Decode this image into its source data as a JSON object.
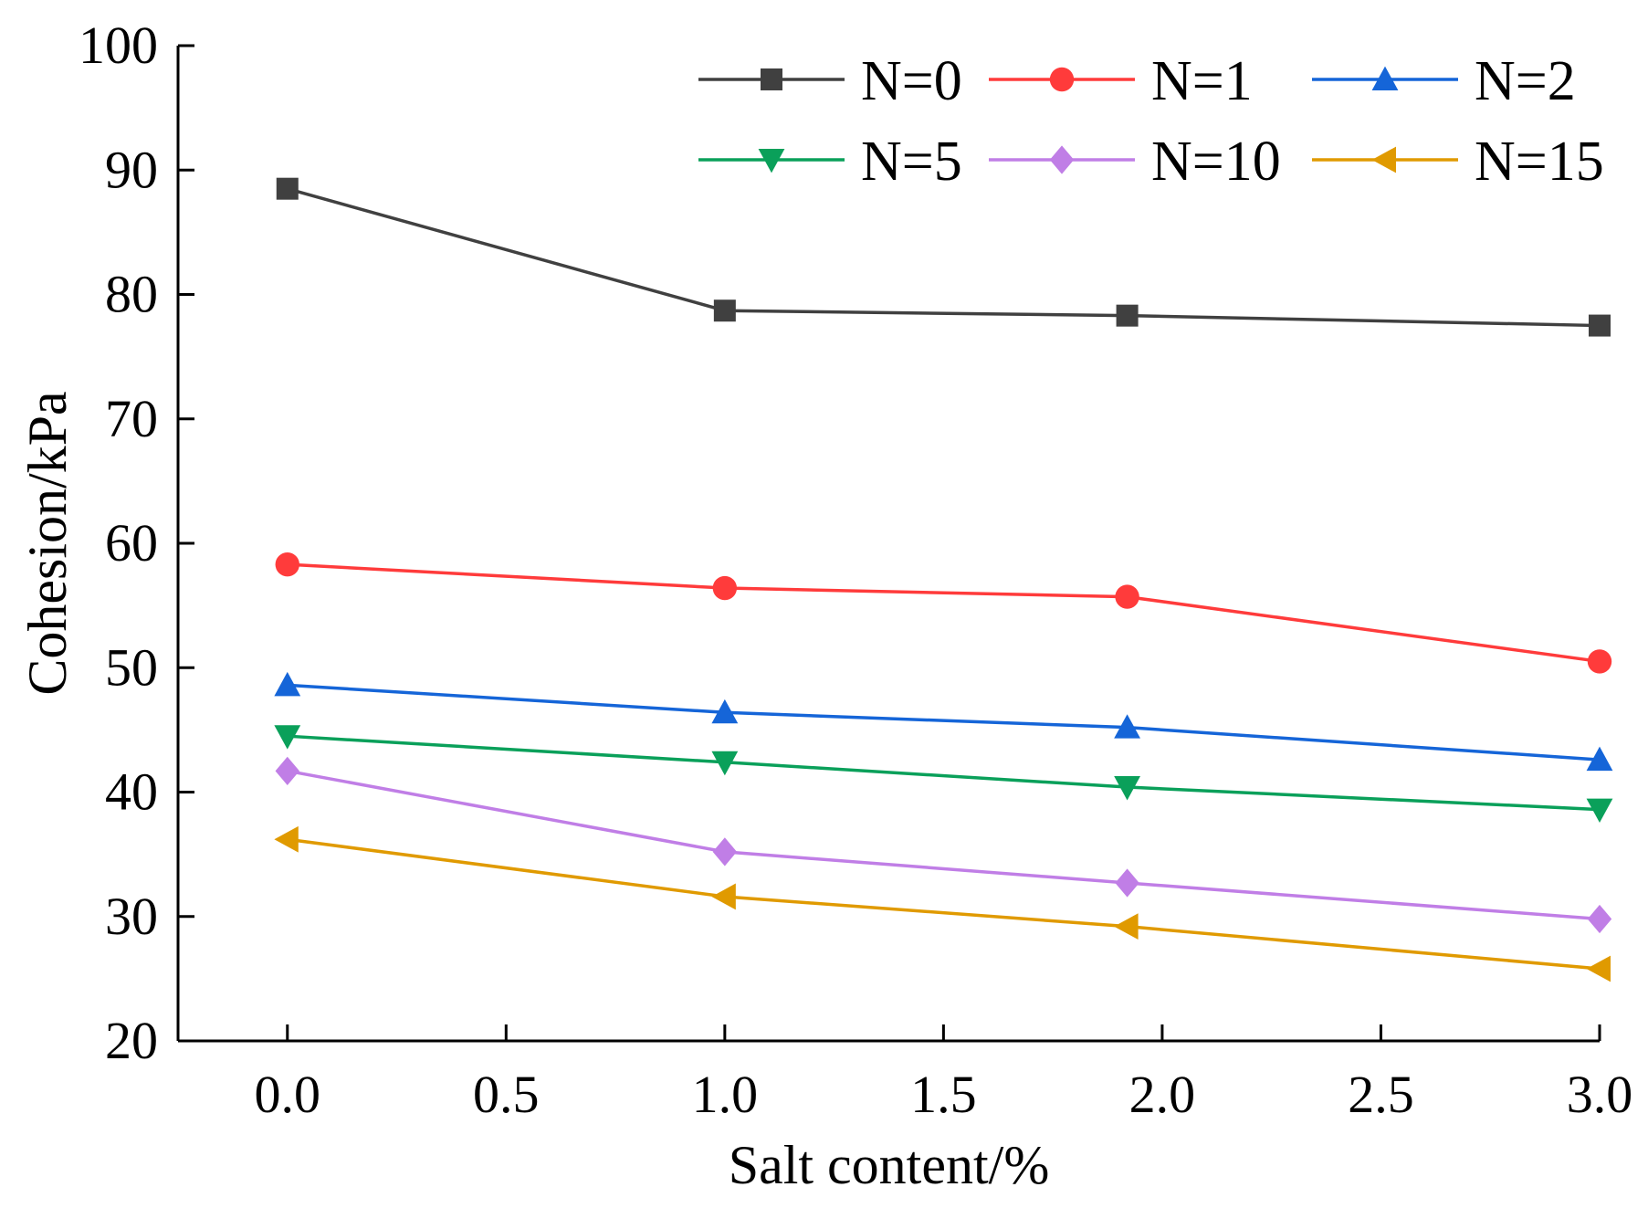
{
  "chart_data": {
    "type": "line",
    "title": "",
    "xlabel": "Salt content/%",
    "ylabel": "Cohesion/kPa",
    "xlim": [
      -0.25,
      3.0
    ],
    "ylim": [
      20,
      100
    ],
    "x_ticks": [
      "0.0",
      "0.5",
      "1.0",
      "1.5",
      "2.0",
      "2.5",
      "3.0"
    ],
    "x_tick_values": [
      0.0,
      0.5,
      1.0,
      1.5,
      2.0,
      2.5,
      3.0
    ],
    "y_ticks": [
      "20",
      "30",
      "40",
      "50",
      "60",
      "70",
      "80",
      "90",
      "100"
    ],
    "y_tick_values": [
      20,
      30,
      40,
      50,
      60,
      70,
      80,
      90,
      100
    ],
    "grid": false,
    "legend_position": "top-right",
    "series": [
      {
        "name": "N=0",
        "color": "#404040",
        "marker": "square",
        "x": [
          0.0,
          1.0,
          1.92,
          3.0
        ],
        "values": [
          88.5,
          78.7,
          78.3,
          77.5
        ]
      },
      {
        "name": "N=1",
        "color": "#ff3b3b",
        "marker": "circle",
        "x": [
          0.0,
          1.0,
          1.92,
          3.0
        ],
        "values": [
          58.3,
          56.4,
          55.7,
          50.5
        ]
      },
      {
        "name": "N=2",
        "color": "#1565d8",
        "marker": "triangle-up",
        "x": [
          0.0,
          1.0,
          1.92,
          3.0
        ],
        "values": [
          48.6,
          46.4,
          45.2,
          42.6
        ]
      },
      {
        "name": "N=5",
        "color": "#0aa05a",
        "marker": "triangle-down",
        "x": [
          0.0,
          1.0,
          1.92,
          3.0
        ],
        "values": [
          44.5,
          42.4,
          40.4,
          38.6
        ]
      },
      {
        "name": "N=10",
        "color": "#c07ee6",
        "marker": "diamond",
        "x": [
          0.0,
          1.0,
          1.92,
          3.0
        ],
        "values": [
          41.7,
          35.2,
          32.7,
          29.8
        ]
      },
      {
        "name": "N=15",
        "color": "#e09a00",
        "marker": "triangle-left",
        "x": [
          0.0,
          1.0,
          1.92,
          3.0
        ],
        "values": [
          36.2,
          31.6,
          29.2,
          25.8
        ]
      }
    ]
  }
}
